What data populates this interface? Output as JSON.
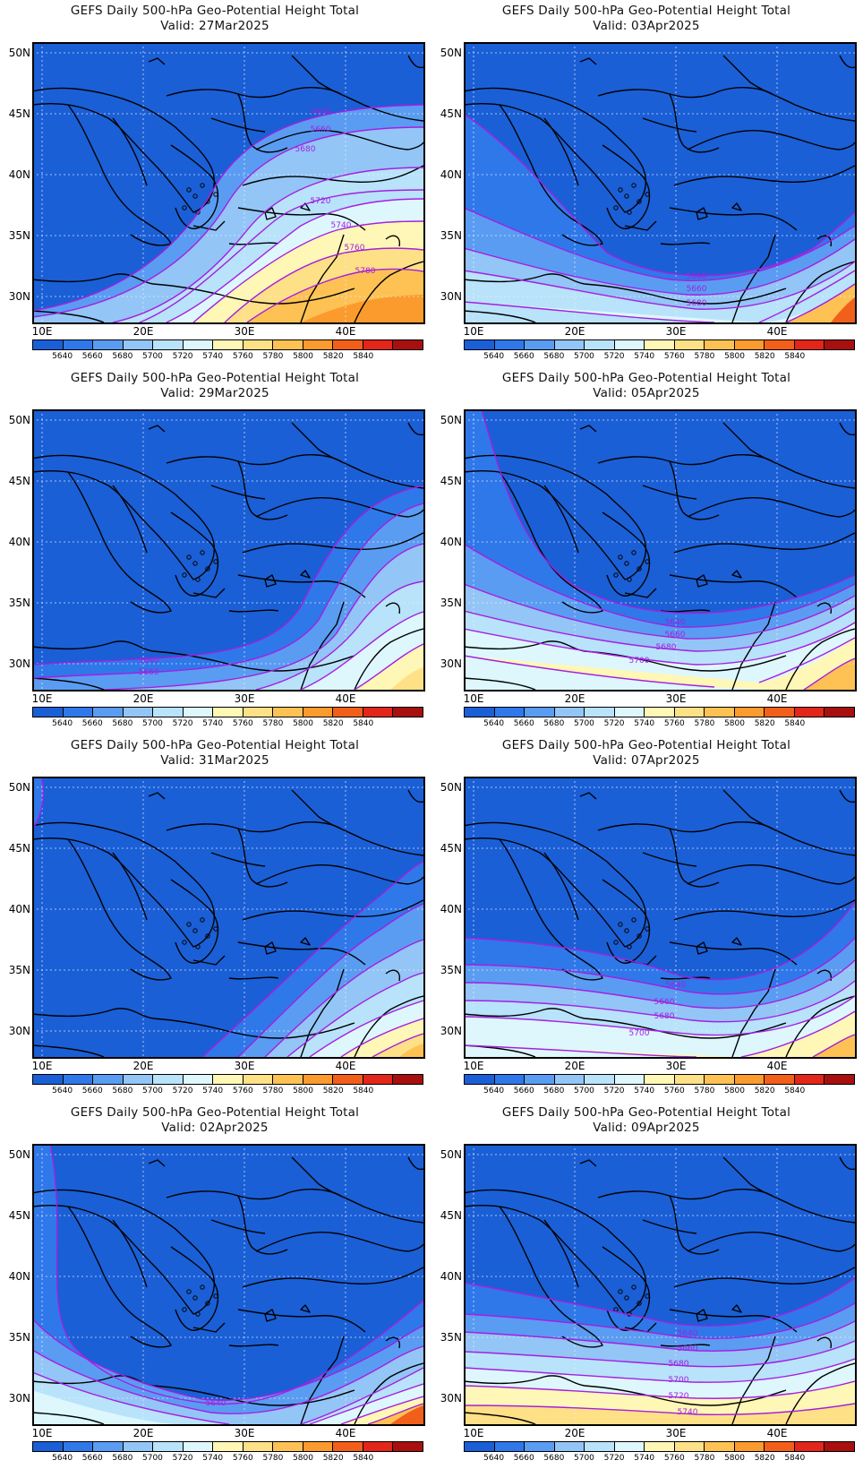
{
  "colorbar": {
    "labels": [
      "5640",
      "5660",
      "5680",
      "5700",
      "5720",
      "5740",
      "5760",
      "5780",
      "5800",
      "5820",
      "5840"
    ],
    "colors": [
      "#1a5fd6",
      "#2f78ea",
      "#5a9cf2",
      "#93c5f7",
      "#b8e3fb",
      "#ddf7fd",
      "#fff7b5",
      "#fee086",
      "#fdc253",
      "#fb9b2e",
      "#f25f1a",
      "#e2261a",
      "#a80f0f"
    ]
  },
  "axes": {
    "lat_labels": [
      "50N",
      "45N",
      "40N",
      "35N",
      "30N"
    ],
    "lon_labels": [
      "10E",
      "20E",
      "30E",
      "40E"
    ]
  },
  "panels": [
    {
      "title": "GEFS Daily 500-hPa Geo-Potential Height Total",
      "valid": "Valid: 27Mar2025",
      "contour_labels": [
        "5640",
        "5660",
        "5680",
        "5720",
        "5740",
        "5760",
        "5780"
      ]
    },
    {
      "title": "GEFS Daily 500-hPa Geo-Potential Height Total",
      "valid": "Valid: 03Apr2025",
      "contour_labels": [
        "5640",
        "5660",
        "5680"
      ]
    },
    {
      "title": "GEFS Daily 500-hPa Geo-Potential Height Total",
      "valid": "Valid: 29Mar2025",
      "contour_labels": [
        "5640",
        "5660"
      ]
    },
    {
      "title": "GEFS Daily 500-hPa Geo-Potential Height Total",
      "valid": "Valid: 05Apr2025",
      "contour_labels": [
        "5640",
        "5660",
        "5680",
        "5700"
      ]
    },
    {
      "title": "GEFS Daily 500-hPa Geo-Potential Height Total",
      "valid": "Valid: 31Mar2025",
      "contour_labels": []
    },
    {
      "title": "GEFS Daily 500-hPa Geo-Potential Height Total",
      "valid": "Valid: 07Apr2025",
      "contour_labels": [
        "5640",
        "5660",
        "5680",
        "5700"
      ]
    },
    {
      "title": "GEFS Daily 500-hPa Geo-Potential Height Total",
      "valid": "Valid: 02Apr2025",
      "contour_labels": [
        "5640"
      ]
    },
    {
      "title": "GEFS Daily 500-hPa Geo-Potential Height Total",
      "valid": "Valid: 09Apr2025",
      "contour_labels": [
        "5640",
        "5660",
        "5680",
        "5700",
        "5720",
        "5740"
      ]
    }
  ]
}
